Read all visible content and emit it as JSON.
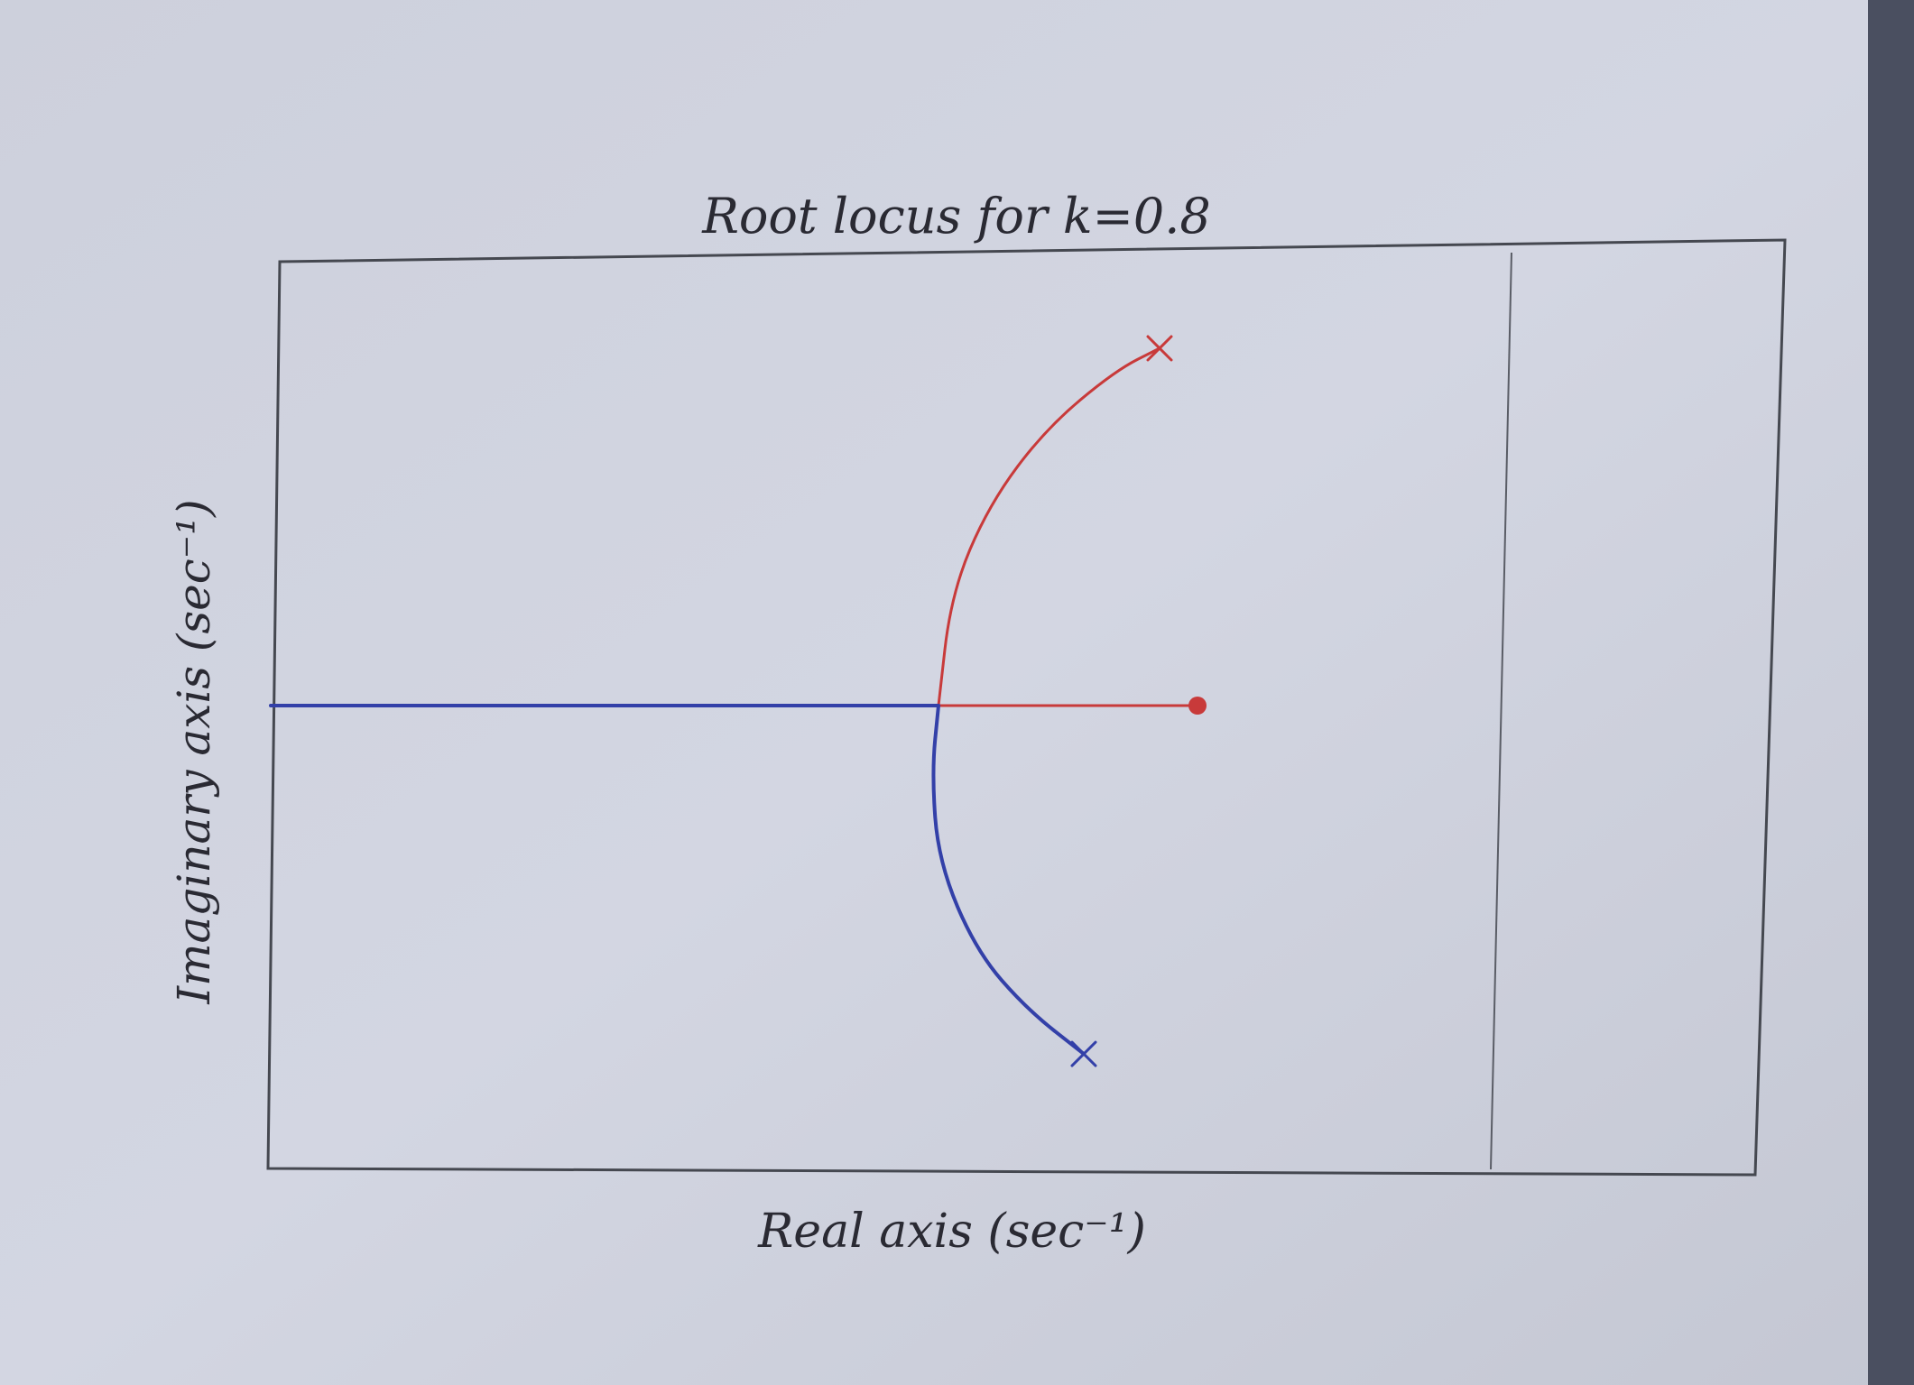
{
  "chart_data": {
    "type": "line",
    "title": "Root locus for k=0.8",
    "xlabel": "Real axis (sec⁻¹)",
    "ylabel": "Imaginary axis (sec⁻¹)",
    "xlim": [
      -1.0,
      1.0
    ],
    "ylim": [
      -1.0,
      1.0
    ],
    "grid": false,
    "legend": "none",
    "series": [
      {
        "color": "#c83a3a",
        "points": [
          [
            0.41,
            0.0
          ],
          [
            0.0,
            0.0
          ],
          [
            0.02,
            0.25
          ],
          [
            0.08,
            0.45
          ],
          [
            0.17,
            0.62
          ],
          [
            0.28,
            0.75
          ],
          [
            0.35,
            0.8
          ]
        ],
        "markers": [
          {
            "shape": "circle",
            "x": 0.41,
            "y": 0.0
          },
          {
            "shape": "cross",
            "x": 0.35,
            "y": 0.8
          }
        ]
      },
      {
        "color": "#3340a8",
        "points": [
          [
            -1.0,
            0.0
          ],
          [
            0.0,
            0.0
          ],
          [
            -0.01,
            -0.15
          ],
          [
            0.0,
            -0.35
          ],
          [
            0.06,
            -0.55
          ],
          [
            0.14,
            -0.68
          ],
          [
            0.23,
            -0.78
          ]
        ],
        "markers": [
          {
            "shape": "cross",
            "x": 0.23,
            "y": -0.78
          }
        ]
      }
    ]
  }
}
